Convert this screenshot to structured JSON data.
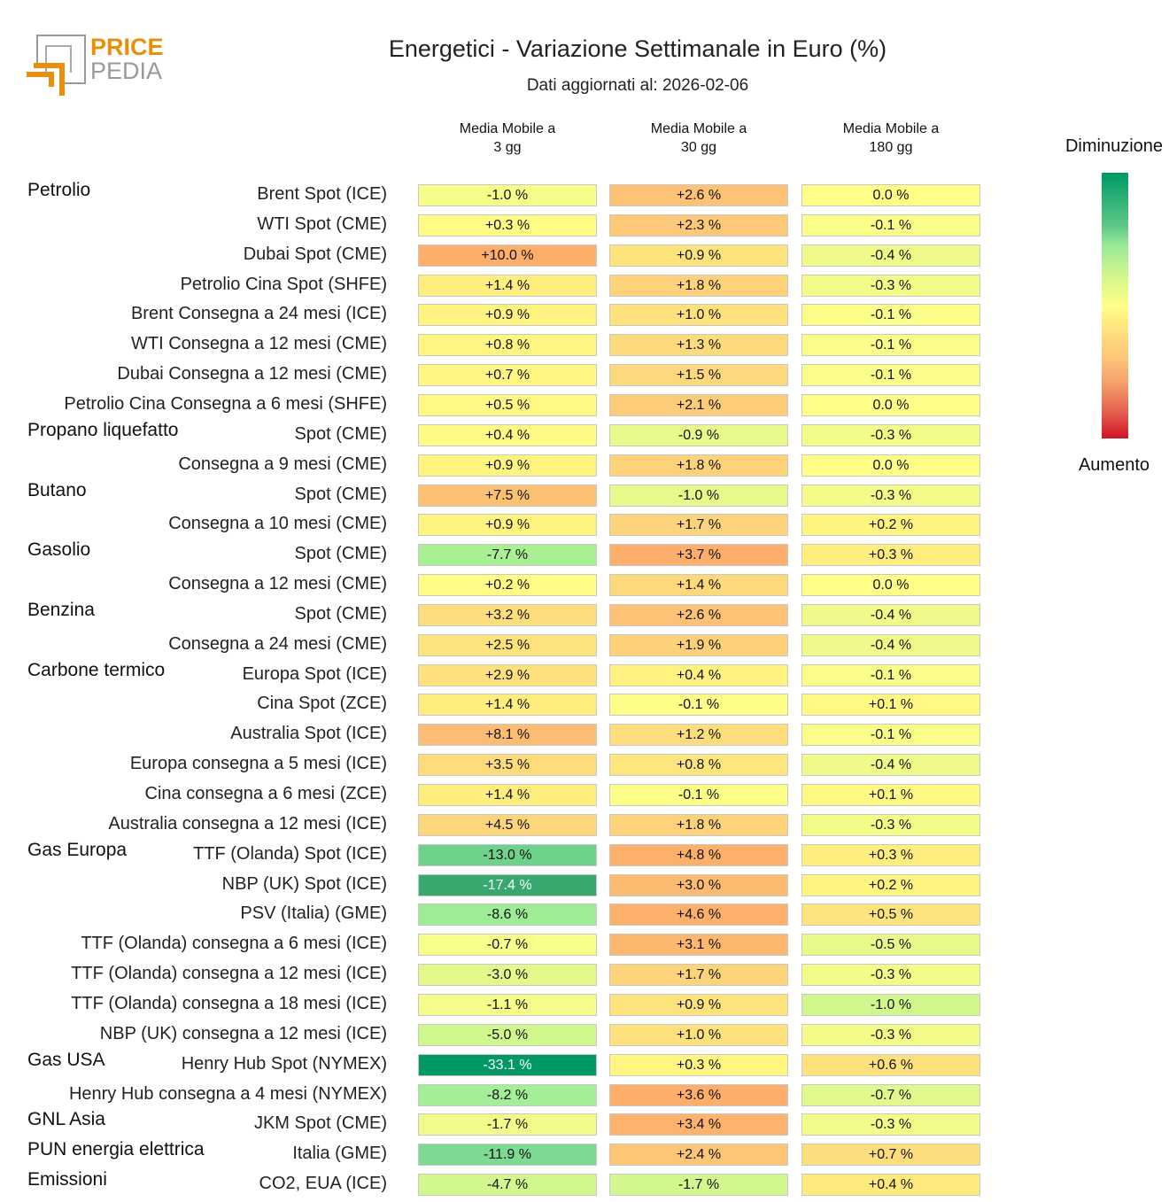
{
  "logo": {
    "text_top": "PRICE",
    "text_bottom": "PEDIA",
    "accent": "#e8900a"
  },
  "chart_data": {
    "type": "heatmap",
    "title": "Energetici - Variazione Settimanale in Euro (%)",
    "subtitle": "Dati aggiornati al: 2026-02-06",
    "columns": [
      "Media Mobile a\n3 gg",
      "Media Mobile a\n30 gg",
      "Media Mobile a\n180 gg"
    ],
    "legend": {
      "top": "Diminuzione",
      "bottom": "Aumento",
      "colors": [
        "#009966",
        "#98e898",
        "#ffff88",
        "#fdc57a",
        "#d01428"
      ]
    },
    "rows": [
      {
        "group": "Petrolio",
        "label": "Brent Spot (ICE)",
        "values": [
          "-1.0 %",
          "+2.6 %",
          "0.0 %"
        ]
      },
      {
        "group": "",
        "label": "WTI Spot (CME)",
        "values": [
          "+0.3 %",
          "+2.3 %",
          "-0.1 %"
        ]
      },
      {
        "group": "",
        "label": "Dubai Spot (CME)",
        "values": [
          "+10.0 %",
          "+0.9 %",
          "-0.4 %"
        ]
      },
      {
        "group": "",
        "label": "Petrolio Cina Spot (SHFE)",
        "values": [
          "+1.4 %",
          "+1.8 %",
          "-0.3 %"
        ]
      },
      {
        "group": "",
        "label": "Brent Consegna a 24 mesi (ICE)",
        "values": [
          "+0.9 %",
          "+1.0 %",
          "-0.1 %"
        ]
      },
      {
        "group": "",
        "label": "WTI Consegna a 12 mesi (CME)",
        "values": [
          "+0.8 %",
          "+1.3 %",
          "-0.1 %"
        ]
      },
      {
        "group": "",
        "label": "Dubai Consegna a 12 mesi (CME)",
        "values": [
          "+0.7 %",
          "+1.5 %",
          "-0.1 %"
        ]
      },
      {
        "group": "",
        "label": "Petrolio Cina Consegna a 6 mesi (SHFE)",
        "values": [
          "+0.5 %",
          "+2.1 %",
          "0.0 %"
        ]
      },
      {
        "group": "Propano liquefatto",
        "label": "Spot (CME)",
        "values": [
          "+0.4 %",
          "-0.9 %",
          "-0.3 %"
        ]
      },
      {
        "group": "",
        "label": "Consegna a 9 mesi (CME)",
        "values": [
          "+0.9 %",
          "+1.8 %",
          "0.0 %"
        ]
      },
      {
        "group": "Butano",
        "label": "Spot (CME)",
        "values": [
          "+7.5 %",
          "-1.0 %",
          "-0.3 %"
        ]
      },
      {
        "group": "",
        "label": "Consegna a 10 mesi (CME)",
        "values": [
          "+0.9 %",
          "+1.7 %",
          "+0.2 %"
        ]
      },
      {
        "group": "Gasolio",
        "label": "Spot (CME)",
        "values": [
          "-7.7 %",
          "+3.7 %",
          "+0.3 %"
        ]
      },
      {
        "group": "",
        "label": "Consegna a 12 mesi (CME)",
        "values": [
          "+0.2 %",
          "+1.4 %",
          "0.0 %"
        ]
      },
      {
        "group": "Benzina",
        "label": "Spot (CME)",
        "values": [
          "+3.2 %",
          "+2.6 %",
          "-0.4 %"
        ]
      },
      {
        "group": "",
        "label": "Consegna a 24 mesi (CME)",
        "values": [
          "+2.5 %",
          "+1.9 %",
          "-0.4 %"
        ]
      },
      {
        "group": "Carbone termico",
        "label": "Europa Spot (ICE)",
        "values": [
          "+2.9 %",
          "+0.4 %",
          "-0.1 %"
        ]
      },
      {
        "group": "",
        "label": "Cina Spot (ZCE)",
        "values": [
          "+1.4 %",
          "-0.1 %",
          "+0.1 %"
        ]
      },
      {
        "group": "",
        "label": "Australia Spot (ICE)",
        "values": [
          "+8.1 %",
          "+1.2 %",
          "-0.1 %"
        ]
      },
      {
        "group": "",
        "label": "Europa consegna a 5 mesi (ICE)",
        "values": [
          "+3.5 %",
          "+0.8 %",
          "-0.4 %"
        ]
      },
      {
        "group": "",
        "label": "Cina consegna a 6 mesi (ZCE)",
        "values": [
          "+1.4 %",
          "-0.1 %",
          "+0.1 %"
        ]
      },
      {
        "group": "",
        "label": "Australia consegna a 12 mesi (ICE)",
        "values": [
          "+4.5 %",
          "+1.8 %",
          "-0.3 %"
        ]
      },
      {
        "group": "Gas Europa",
        "label": "TTF (Olanda) Spot (ICE)",
        "values": [
          "-13.0 %",
          "+4.8 %",
          "+0.3 %"
        ]
      },
      {
        "group": "",
        "label": "NBP (UK) Spot (ICE)",
        "values": [
          "-17.4 %",
          "+3.0 %",
          "+0.2 %"
        ]
      },
      {
        "group": "",
        "label": "PSV (Italia) (GME)",
        "values": [
          "-8.6 %",
          "+4.6 %",
          "+0.5 %"
        ]
      },
      {
        "group": "",
        "label": "TTF (Olanda) consegna a 6 mesi (ICE)",
        "values": [
          "-0.7 %",
          "+3.1 %",
          "-0.5 %"
        ]
      },
      {
        "group": "",
        "label": "TTF (Olanda) consegna a 12 mesi (ICE)",
        "values": [
          "-3.0 %",
          "+1.7 %",
          "-0.3 %"
        ]
      },
      {
        "group": "",
        "label": "TTF (Olanda) consegna a 18 mesi (ICE)",
        "values": [
          "-1.1 %",
          "+0.9 %",
          "-1.0 %"
        ]
      },
      {
        "group": "",
        "label": "NBP (UK) consegna a 12 mesi (ICE)",
        "values": [
          "-5.0 %",
          "+1.0 %",
          "-0.3 %"
        ]
      },
      {
        "group": "Gas USA",
        "label": "Henry Hub Spot (NYMEX)",
        "values": [
          "-33.1 %",
          "+0.3 %",
          "+0.6 %"
        ]
      },
      {
        "group": "",
        "label": "Henry Hub consegna a 4 mesi (NYMEX)",
        "values": [
          "-8.2 %",
          "+3.6 %",
          "-0.7 %"
        ]
      },
      {
        "group": "GNL Asia",
        "label": "JKM Spot (CME)",
        "values": [
          "-1.7 %",
          "+3.4 %",
          "-0.3 %"
        ]
      },
      {
        "group": "PUN energia elettrica",
        "label": "Italia (GME)",
        "values": [
          "-11.9 %",
          "+2.4 %",
          "+0.7 %"
        ]
      },
      {
        "group": "Emissioni",
        "label": "CO2, EUA (ICE)",
        "values": [
          "-4.7 %",
          "-1.7 %",
          "+0.4 %"
        ]
      }
    ]
  }
}
